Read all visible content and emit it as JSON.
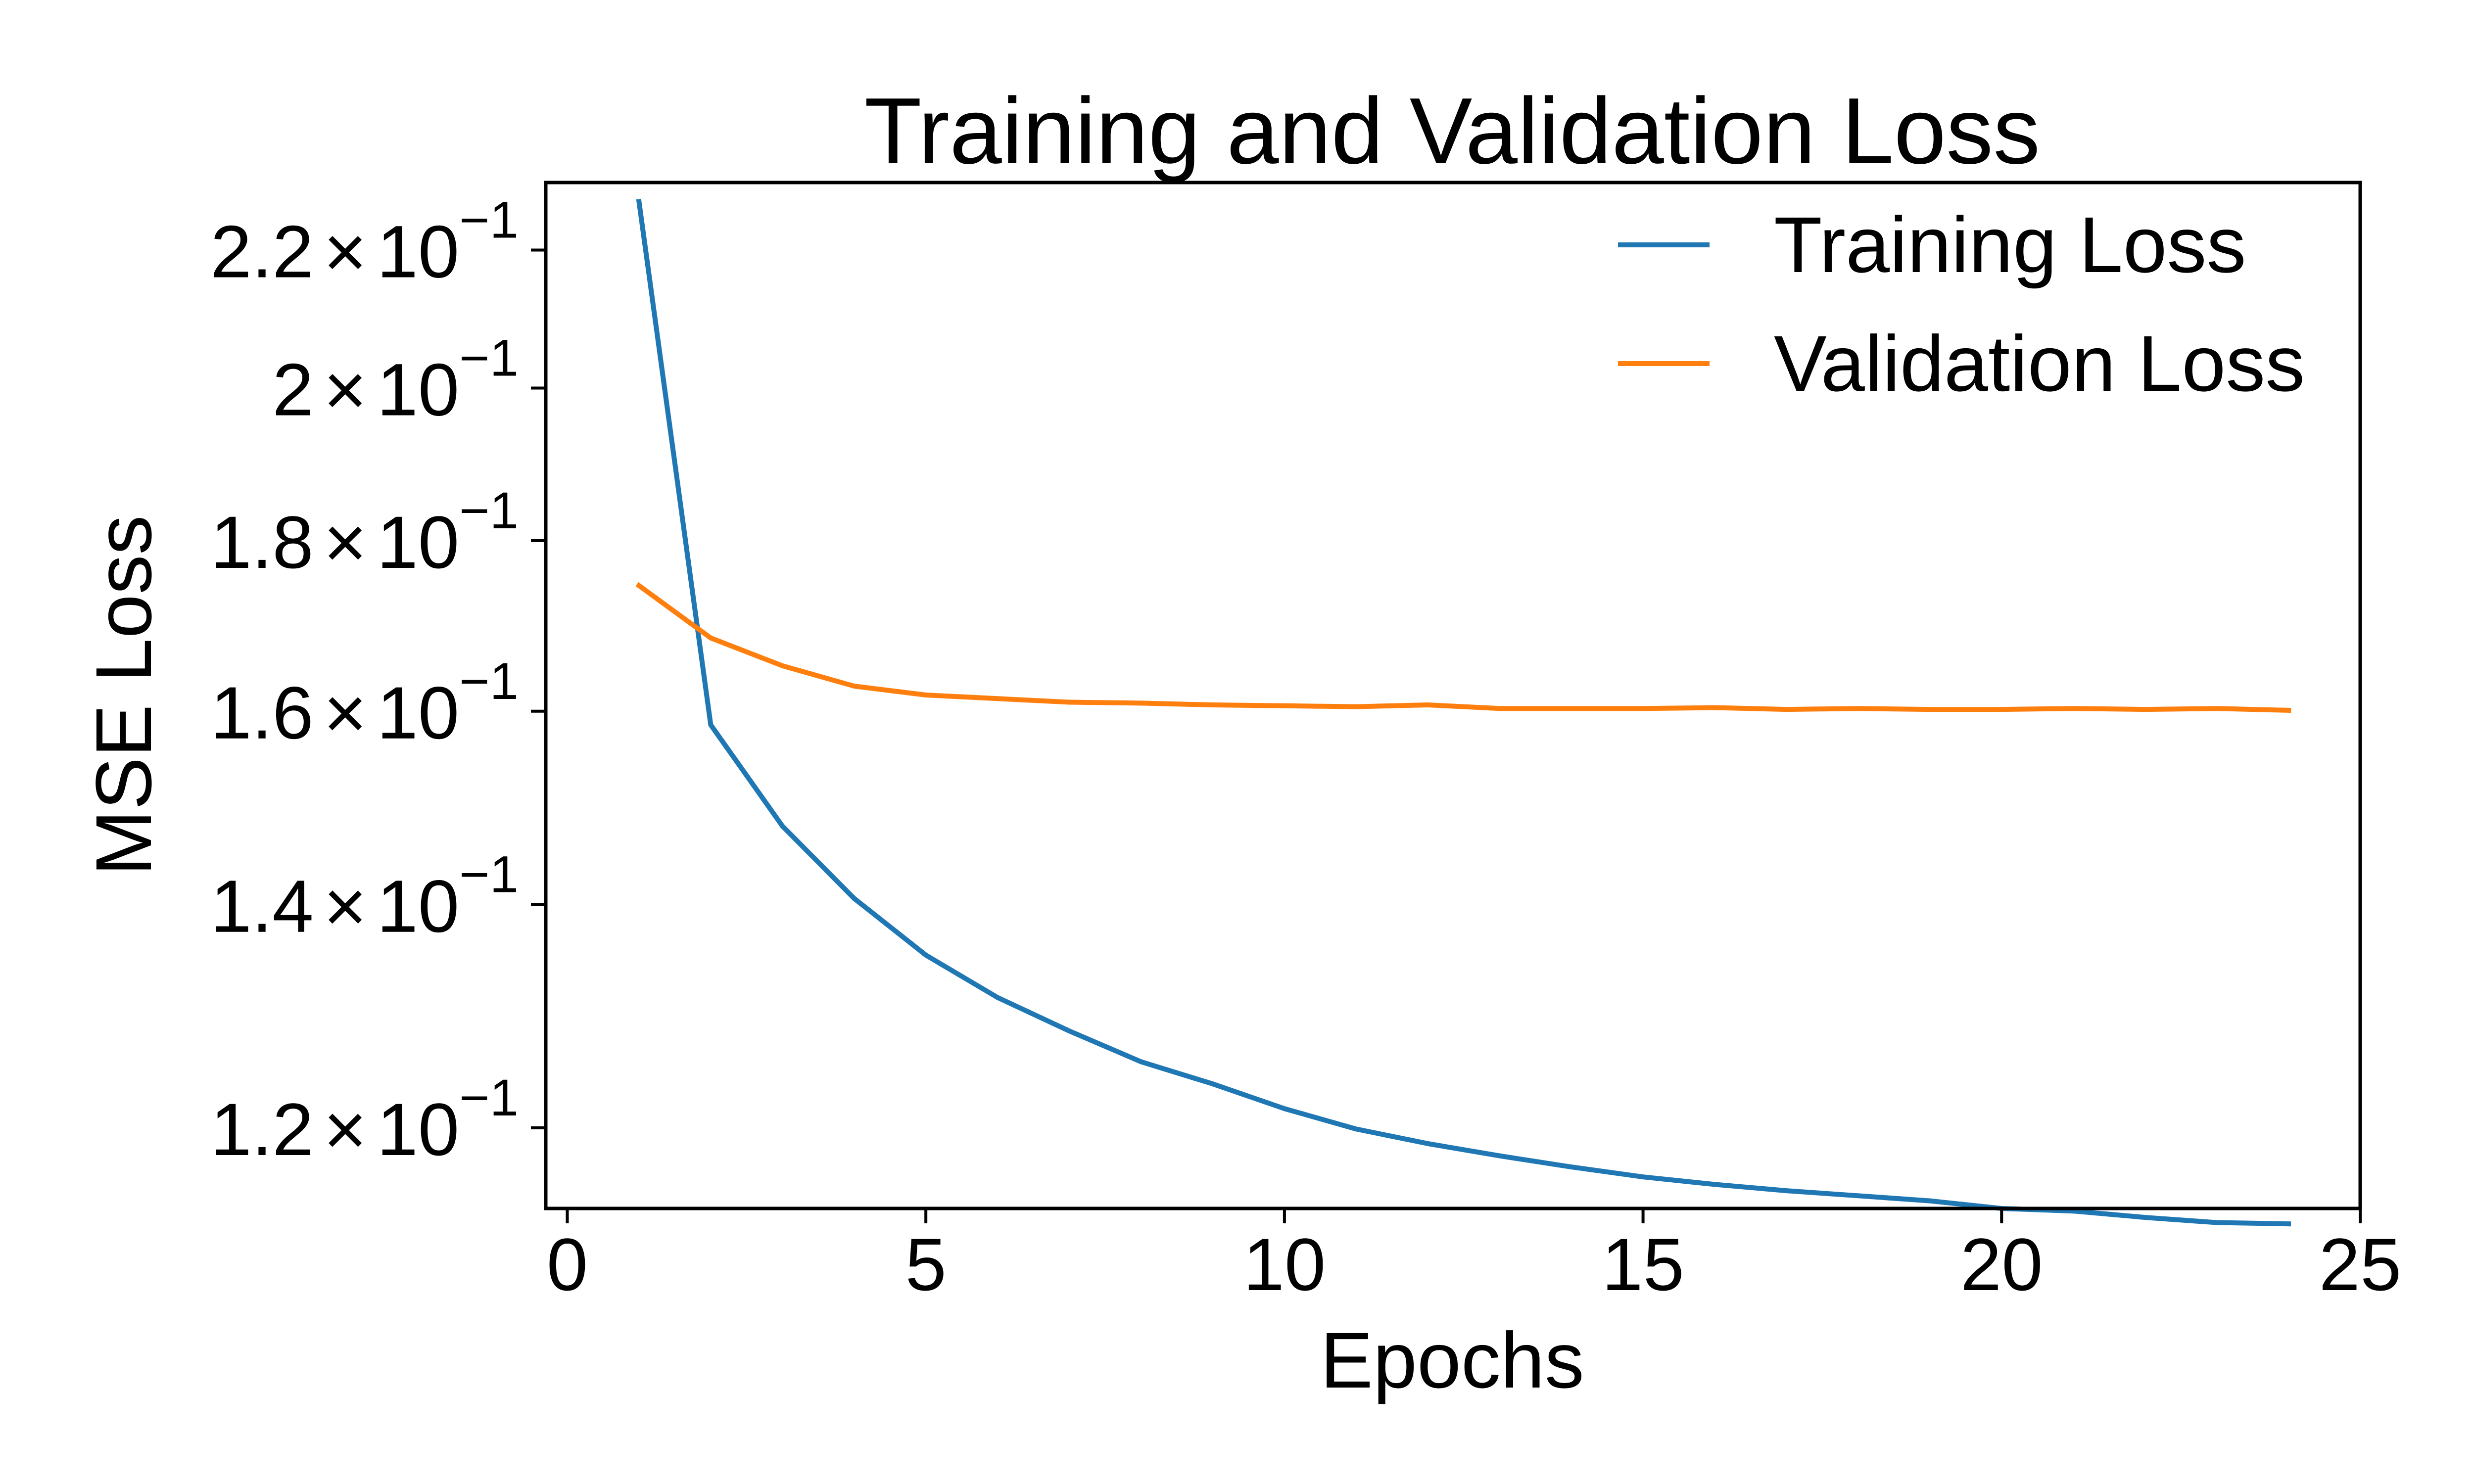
{
  "chart_data": {
    "type": "line",
    "title": "Training and Validation Loss",
    "xlabel": "Epochs",
    "ylabel": "MSE Loss",
    "xlim": [
      -0.3,
      25
    ],
    "ylim": [
      0.1135,
      0.2305
    ],
    "y_scale": "log",
    "grid": false,
    "legend_position": "top-right",
    "x_ticks": [
      {
        "value": 0,
        "label": "0"
      },
      {
        "value": 5,
        "label": "5"
      },
      {
        "value": 10,
        "label": "10"
      },
      {
        "value": 15,
        "label": "15"
      },
      {
        "value": 20,
        "label": "20"
      },
      {
        "value": 25,
        "label": "25"
      }
    ],
    "y_ticks": [
      {
        "value": 0.12,
        "mantissa": "1.2",
        "exp": "−1"
      },
      {
        "value": 0.14,
        "mantissa": "1.4",
        "exp": "−1"
      },
      {
        "value": 0.16,
        "mantissa": "1.6",
        "exp": "−1"
      },
      {
        "value": 0.18,
        "mantissa": "1.8",
        "exp": "−1"
      },
      {
        "value": 0.2,
        "mantissa": "2",
        "exp": "−1"
      },
      {
        "value": 0.22,
        "mantissa": "2.2",
        "exp": "−1"
      }
    ],
    "x": [
      1,
      2,
      3,
      4,
      5,
      6,
      7,
      8,
      9,
      10,
      11,
      12,
      13,
      14,
      15,
      16,
      17,
      18,
      19,
      20,
      21,
      22,
      23,
      24
    ],
    "series": [
      {
        "name": "Training Loss",
        "color": "#1f77b4",
        "values": [
          0.2275,
          0.1585,
          0.1478,
          0.1406,
          0.1352,
          0.1313,
          0.1283,
          0.1256,
          0.1237,
          0.1216,
          0.1199,
          0.1187,
          0.1177,
          0.1168,
          0.116,
          0.1154,
          0.1149,
          0.1145,
          0.1141,
          0.1135,
          0.1133,
          0.1128,
          0.1124,
          0.1123
        ]
      },
      {
        "name": "Validation Loss",
        "color": "#ff7f0e",
        "values": [
          0.1745,
          0.1683,
          0.1651,
          0.1628,
          0.1618,
          0.1614,
          0.161,
          0.1609,
          0.1607,
          0.1606,
          0.1605,
          0.1607,
          0.1603,
          0.1603,
          0.1603,
          0.1604,
          0.1602,
          0.1603,
          0.1602,
          0.1602,
          0.1603,
          0.1602,
          0.1603,
          0.1601
        ]
      }
    ]
  }
}
